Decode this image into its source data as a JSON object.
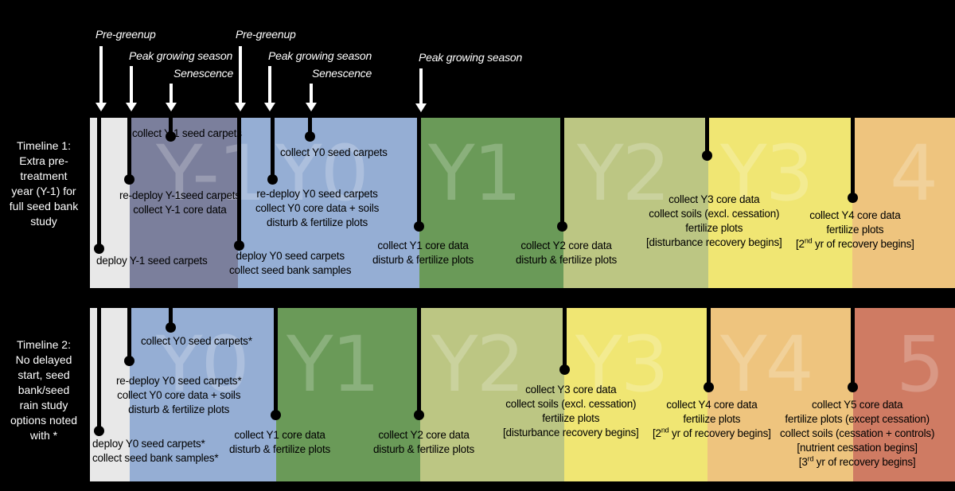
{
  "season_headers": {
    "pre_greenup_1": "Pre-greenup",
    "peak_1": "Peak growing season",
    "senescence_1": "Senescence",
    "pre_greenup_2": "Pre-greenup",
    "peak_2": "Peak growing season",
    "senescence_2": "Senescence",
    "peak_3": "Peak growing season"
  },
  "timeline1": {
    "label": [
      "Timeline 1:",
      "Extra pre-",
      "treatment",
      "year (Y-1) for",
      "full seed bank",
      "study"
    ],
    "year_labels": [
      "Y-1",
      "Y0",
      "Y1",
      "Y2",
      "Y3",
      "4"
    ],
    "notes": {
      "deploy_y_1": [
        "deploy Y-1 seed carpets"
      ],
      "collect_y_1_carpets": [
        "collect Y-1 seed carpets"
      ],
      "redeploy_y_1": [
        "re-deploy Y-1seed carpets",
        "collect Y-1 core data"
      ],
      "deploy_y0": [
        "deploy Y0 seed carpets",
        "collect seed bank samples"
      ],
      "redeploy_y0": [
        "re-deploy Y0 seed carpets",
        "collect Y0 core data + soils",
        "disturb & fertilize plots"
      ],
      "collect_y0_carpets": [
        "collect Y0 seed carpets"
      ],
      "y1": [
        "collect Y1 core data",
        "disturb & fertilize plots"
      ],
      "y2": [
        "collect Y2 core data",
        "disturb & fertilize plots"
      ],
      "y3": [
        "collect Y3 core data",
        "collect soils (excl. cessation)",
        "fertilize plots",
        "[disturbance recovery begins]"
      ],
      "y4_1": "collect Y4 core data",
      "y4_2": "fertilize plots",
      "y4_3a": "[2",
      "y4_3sup": "nd",
      "y4_3b": " yr of recovery begins]"
    }
  },
  "timeline2": {
    "label": [
      "Timeline 2:",
      "No delayed",
      "start, seed",
      "bank/seed",
      "rain study",
      "options noted",
      "with *"
    ],
    "year_labels": [
      "Y0",
      "Y1",
      "Y2",
      "Y3",
      "Y4",
      "5"
    ],
    "notes": {
      "deploy_y0": [
        "deploy Y0 seed carpets*",
        "collect seed bank samples*"
      ],
      "collect_y0_carpets": [
        "collect Y0 seed carpets*"
      ],
      "redeploy_y0": [
        "re-deploy Y0 seed carpets*",
        "collect Y0 core data + soils",
        "disturb & fertilize plots"
      ],
      "y1": [
        "collect Y1 core data",
        "disturb & fertilize plots"
      ],
      "y2": [
        "collect Y2 core data",
        "disturb & fertilize plots"
      ],
      "y3": [
        "collect Y3 core data",
        "collect soils (excl. cessation)",
        "fertilize plots",
        "[disturbance recovery begins]"
      ],
      "y4_1": "collect Y4 core data",
      "y4_2": "fertilize plots",
      "y4_3a": "[2",
      "y4_3sup": "nd",
      "y4_3b": " yr of recovery begins]",
      "y5_1": "collect Y5 core data",
      "y5_2": "fertilize plots (except cessation)",
      "y5_3": "collect soils (cessation + controls)",
      "y5_4": "[nutrient cessation begins]",
      "y5_5a": "[3",
      "y5_5sup": "rd",
      "y5_5b": " yr of recovery begins]"
    }
  },
  "colors": {
    "pre": "#e8e8e8",
    "y_1": "#7b7f9c",
    "y0": "#95aed4",
    "y1": "#6a9a58",
    "y2": "#bcc683",
    "y3": "#f0e673",
    "y4": "#eec47e",
    "y5": "#cf7b63"
  }
}
